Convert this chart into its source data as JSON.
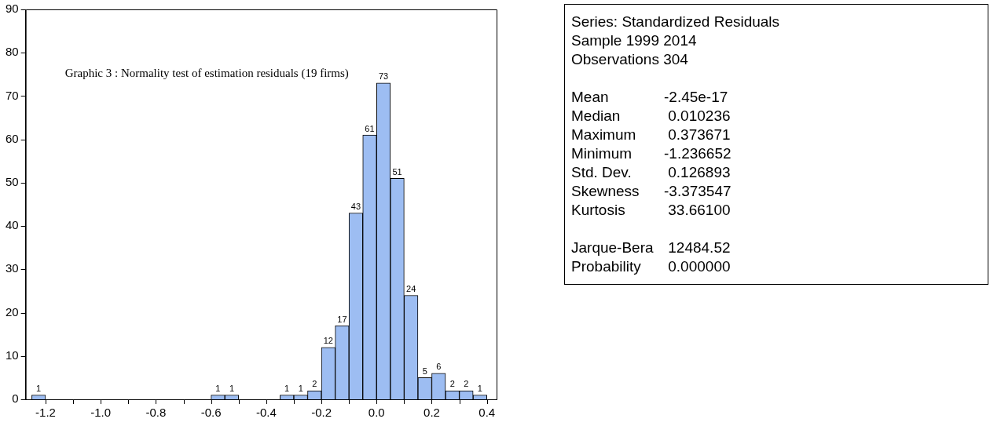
{
  "chart_data": {
    "type": "histogram",
    "title": "Graphic 3 : Normality test of estimation residuals (19 firms)",
    "bins": [
      -1.25,
      -1.2,
      -1.15,
      -1.1,
      -1.05,
      -1.0,
      -0.95,
      -0.9,
      -0.85,
      -0.8,
      -0.75,
      -0.7,
      -0.65,
      -0.6,
      -0.55,
      -0.5,
      -0.45,
      -0.4,
      -0.35,
      -0.3,
      -0.25,
      -0.2,
      -0.15,
      -0.1,
      -0.05,
      0.0,
      0.05,
      0.1,
      0.15,
      0.2,
      0.25,
      0.3,
      0.35,
      0.4
    ],
    "values": [
      1,
      0,
      0,
      0,
      0,
      0,
      0,
      0,
      0,
      0,
      0,
      0,
      0,
      1,
      1,
      0,
      0,
      0,
      1,
      1,
      2,
      12,
      17,
      43,
      61,
      73,
      51,
      24,
      5,
      6,
      2,
      2,
      1
    ],
    "value_labels": [
      "1",
      null,
      null,
      null,
      null,
      null,
      null,
      null,
      null,
      null,
      null,
      null,
      null,
      "1",
      "1",
      null,
      null,
      null,
      "1",
      "1",
      "2",
      "12",
      "17",
      "43",
      "61",
      "73",
      "51",
      "24",
      "5",
      "6",
      "2",
      "2",
      "1"
    ],
    "color": "#9dbdf2",
    "xlim": [
      -1.272,
      0.435
    ],
    "xticks": [
      {
        "value": -1.2,
        "label": "-1.2"
      },
      {
        "value": -1.1,
        "label": null
      },
      {
        "value": -1.0,
        "label": "-1.0"
      },
      {
        "value": -0.9,
        "label": null
      },
      {
        "value": -0.8,
        "label": "-0.8"
      },
      {
        "value": -0.7,
        "label": null
      },
      {
        "value": -0.6,
        "label": "-0.6"
      },
      {
        "value": -0.5,
        "label": null
      },
      {
        "value": -0.4,
        "label": "-0.4"
      },
      {
        "value": -0.3,
        "label": null
      },
      {
        "value": -0.2,
        "label": "-0.2"
      },
      {
        "value": -0.1,
        "label": null
      },
      {
        "value": 0.0,
        "label": "0.0"
      },
      {
        "value": 0.1,
        "label": null
      },
      {
        "value": 0.2,
        "label": "0.2"
      },
      {
        "value": 0.3,
        "label": null
      },
      {
        "value": 0.4,
        "label": "0.4"
      }
    ],
    "ylim": [
      0,
      90
    ],
    "yticks": [
      0,
      10,
      20,
      30,
      40,
      50,
      60,
      70,
      80,
      90
    ],
    "grid": false,
    "legend": false,
    "annotations": [
      "Series: Standardized Residuals",
      "Sample 1999 2014",
      "Observations 304",
      "Mean\t-2.45e-17",
      "Median\t 0.010236",
      "Maximum\t 0.373671",
      "Minimum\t-1.236652",
      "Std. Dev.\t 0.126893",
      "Skewness\t-3.373547",
      "Kurtosis\t 33.66100",
      "Jarque-Bera\t 12484.52",
      "Probability\t 0.000000"
    ]
  }
}
